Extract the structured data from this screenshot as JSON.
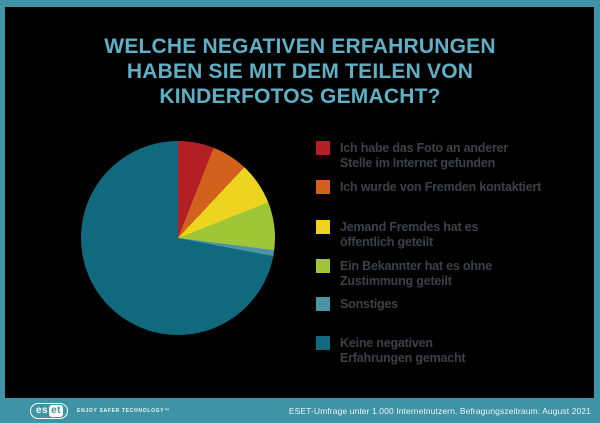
{
  "title": "WELCHE NEGATIVEN ERFAHRUNGEN\nHABEN SIE MIT DEM TEILEN VON\nKINDERFOTOS GEMACHT?",
  "chart_data": {
    "type": "pie",
    "title": "Welche negativen Erfahrungen haben Sie mit dem Teilen von Kinderfotos gemacht?",
    "start_angle_deg": 0,
    "direction": "clockwise",
    "legend_position": "right",
    "slices": [
      {
        "label": "Ich habe das Foto an anderer\nStelle im Internet gefunden",
        "value": 6,
        "color": "#B21F24"
      },
      {
        "label": "Ich wurde von Fremden kontaktiert",
        "value": 6,
        "color": "#D2611E"
      },
      {
        "label": "Jemand Fremdes hat es\nöffentlich geteilt",
        "value": 7,
        "color": "#EDD41F"
      },
      {
        "label": "Ein Bekannter hat es ohne\nZustimmung geteilt",
        "value": 8,
        "color": "#9FC637"
      },
      {
        "label": "Sonstiges",
        "value": 1,
        "color": "#4E92A6"
      },
      {
        "label": "Keine negativen\nErfahrungen gemacht",
        "value": 72,
        "color": "#10697C"
      }
    ]
  },
  "footer": {
    "logo_text_left": "es",
    "logo_text_right": "et",
    "logo_tagline": "ENJOY SAFER TECHNOLOGY™",
    "source": "ESET-Umfrage unter 1.000 Internetnutzern, Befragungszeitraum: August 2021"
  },
  "colors": {
    "background": "#000000",
    "frame": "#3E93A4",
    "title_text": "#5FB0C7",
    "legend_text": "#3C4148"
  }
}
